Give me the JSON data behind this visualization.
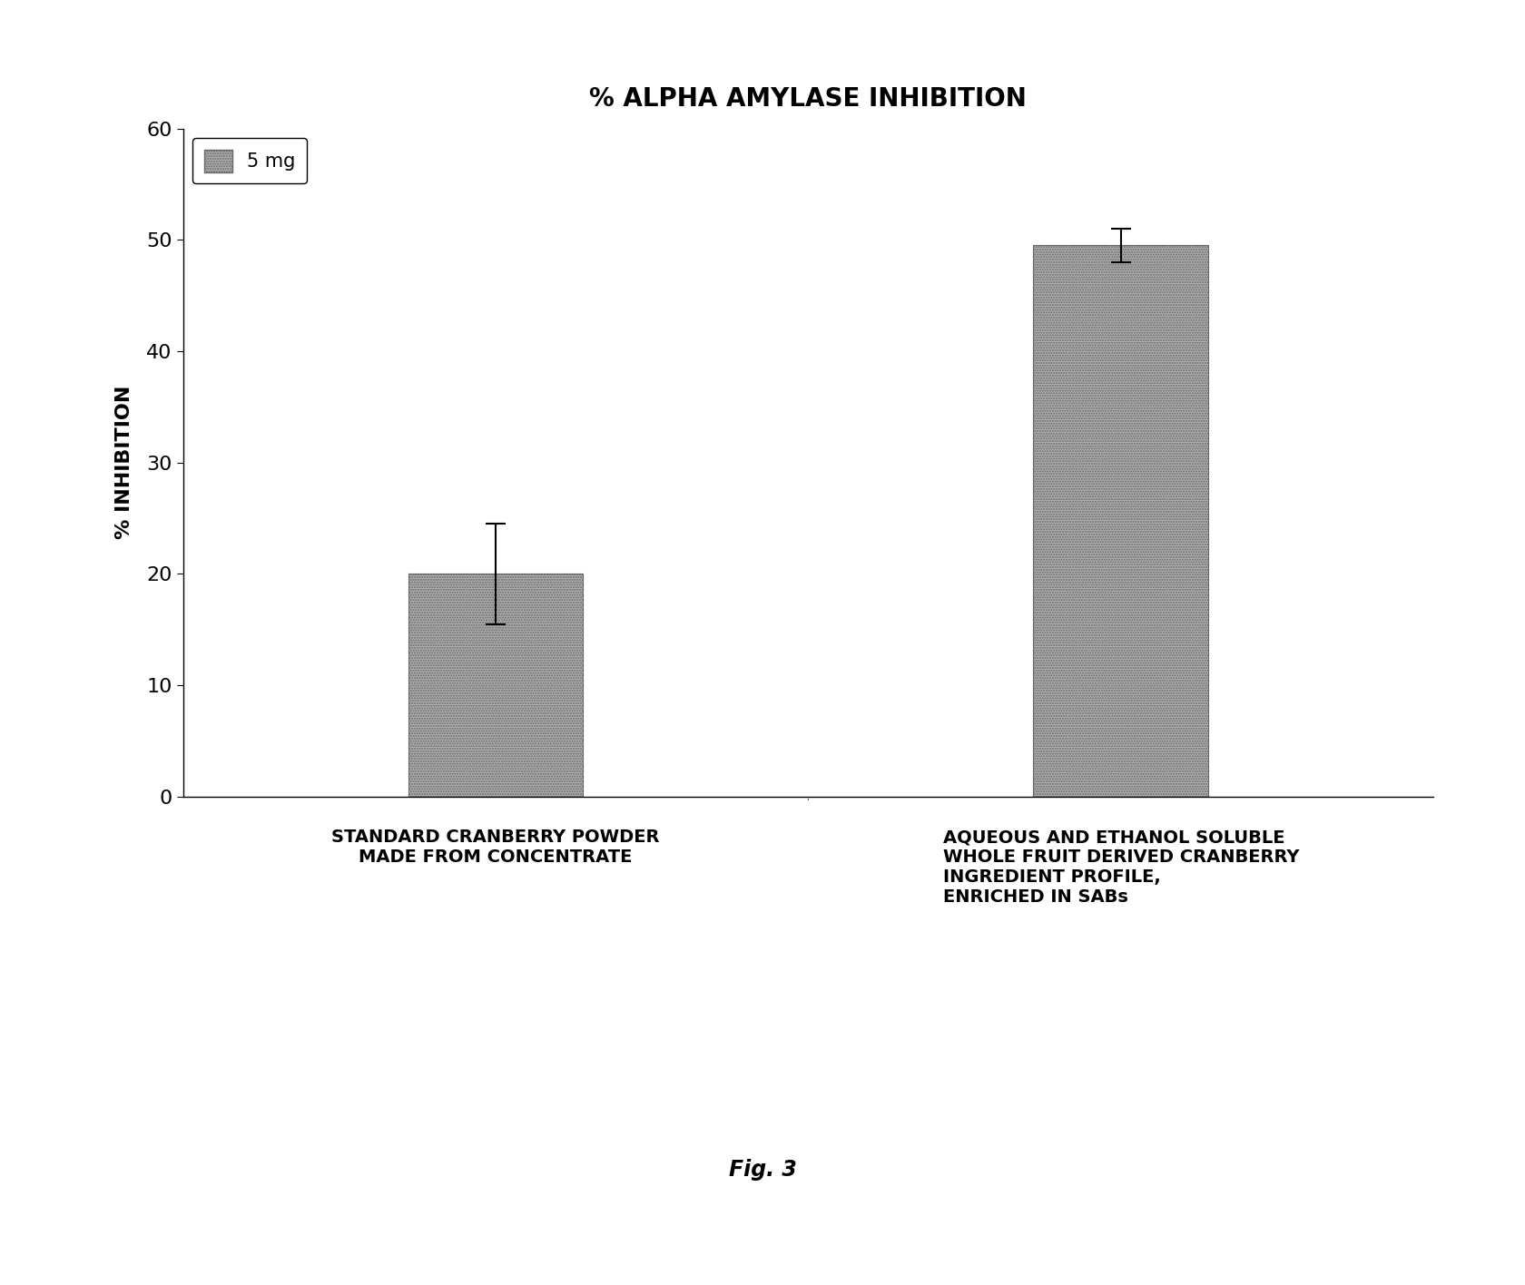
{
  "title": "% ALPHA AMYLASE INHIBITION",
  "ylabel": "% INHIBITION",
  "cat1_line1": "STANDARD CRANBERRY POWDER",
  "cat1_line2": "MADE FROM CONCENTRATE",
  "cat2_line1": "AQUEOUS AND ETHANOL SOLUBLE",
  "cat2_line2": "WHOLE FRUIT DERIVED CRANBERRY",
  "cat2_line3": "INGREDIENT PROFILE,",
  "cat2_line4": "ENRICHED IN SABs",
  "values": [
    20.0,
    49.5
  ],
  "errors": [
    4.5,
    1.5
  ],
  "ylim": [
    0,
    60
  ],
  "yticks": [
    0,
    10,
    20,
    30,
    40,
    50,
    60
  ],
  "bar_color": "#b0b0b0",
  "bar_width": 0.28,
  "bar_positions": [
    1,
    2
  ],
  "legend_label": "5 mg",
  "figure_caption": "Fig. 3",
  "background_color": "#ffffff",
  "title_fontsize": 20,
  "ylabel_fontsize": 16,
  "tick_fontsize": 16,
  "legend_fontsize": 15,
  "xlabel_fontsize": 14,
  "caption_fontsize": 17
}
